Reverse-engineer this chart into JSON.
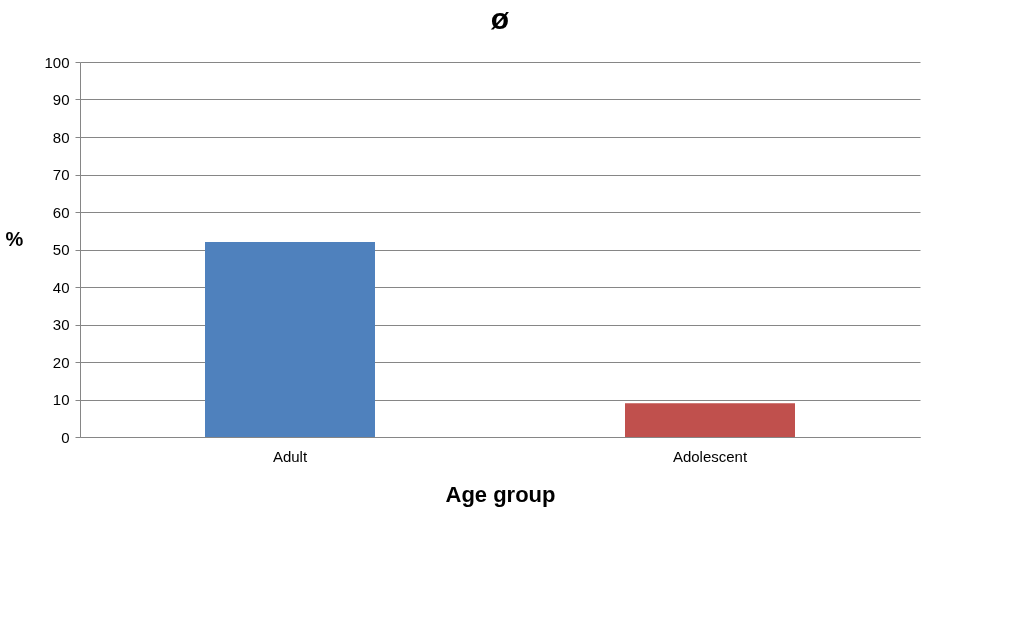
{
  "chart_data": {
    "type": "bar",
    "title": "ø",
    "xlabel": "Age group",
    "ylabel": "%",
    "categories": [
      "Adult",
      "Adolescent"
    ],
    "values": [
      52,
      9
    ],
    "colors": [
      "#4f81bd",
      "#c0504d"
    ],
    "ylim": [
      0,
      100
    ],
    "yticks": [
      0,
      10,
      20,
      30,
      40,
      50,
      60,
      70,
      80,
      90,
      100
    ],
    "grid": "y"
  }
}
